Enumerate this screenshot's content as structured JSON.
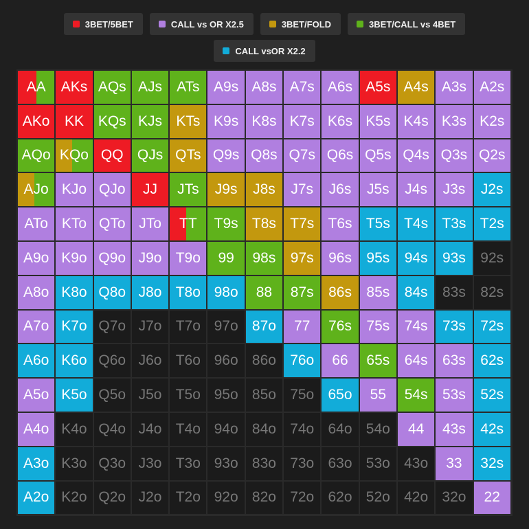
{
  "colors": {
    "red": "#ee1b24",
    "purple": "#b07fe0",
    "gold": "#c3980e",
    "green": "#5fb21b",
    "blue": "#12acd9",
    "empty": "#1b1b1b"
  },
  "legend": [
    {
      "key": "red",
      "label": "3BET/5BET"
    },
    {
      "key": "purple",
      "label": "CALL vs OR X2.5"
    },
    {
      "key": "gold",
      "label": "3BET/FOLD"
    },
    {
      "key": "green",
      "label": "3BET/CALL vs 4BET"
    },
    {
      "key": "blue",
      "label": "CALL vsOR X2.2"
    }
  ],
  "chart_data": {
    "type": "heatmap",
    "ranks": [
      "A",
      "K",
      "Q",
      "J",
      "T",
      "9",
      "8",
      "7",
      "6",
      "5",
      "4",
      "3",
      "2"
    ],
    "hands": [
      [
        "AA",
        "AKs",
        "AQs",
        "AJs",
        "ATs",
        "A9s",
        "A8s",
        "A7s",
        "A6s",
        "A5s",
        "A4s",
        "A3s",
        "A2s"
      ],
      [
        "AKo",
        "KK",
        "KQs",
        "KJs",
        "KTs",
        "K9s",
        "K8s",
        "K7s",
        "K6s",
        "K5s",
        "K4s",
        "K3s",
        "K2s"
      ],
      [
        "AQo",
        "KQo",
        "QQ",
        "QJs",
        "QTs",
        "Q9s",
        "Q8s",
        "Q7s",
        "Q6s",
        "Q5s",
        "Q4s",
        "Q3s",
        "Q2s"
      ],
      [
        "AJo",
        "KJo",
        "QJo",
        "JJ",
        "JTs",
        "J9s",
        "J8s",
        "J7s",
        "J6s",
        "J5s",
        "J4s",
        "J3s",
        "J2s"
      ],
      [
        "ATo",
        "KTo",
        "QTo",
        "JTo",
        "TT",
        "T9s",
        "T8s",
        "T7s",
        "T6s",
        "T5s",
        "T4s",
        "T3s",
        "T2s"
      ],
      [
        "A9o",
        "K9o",
        "Q9o",
        "J9o",
        "T9o",
        "99",
        "98s",
        "97s",
        "96s",
        "95s",
        "94s",
        "93s",
        "92s"
      ],
      [
        "A8o",
        "K8o",
        "Q8o",
        "J8o",
        "T8o",
        "98o",
        "88",
        "87s",
        "86s",
        "85s",
        "84s",
        "83s",
        "82s"
      ],
      [
        "A7o",
        "K7o",
        "Q7o",
        "J7o",
        "T7o",
        "97o",
        "87o",
        "77",
        "76s",
        "75s",
        "74s",
        "73s",
        "72s"
      ],
      [
        "A6o",
        "K6o",
        "Q6o",
        "J6o",
        "T6o",
        "96o",
        "86o",
        "76o",
        "66",
        "65s",
        "64s",
        "63s",
        "62s"
      ],
      [
        "A5o",
        "K5o",
        "Q5o",
        "J5o",
        "T5o",
        "95o",
        "85o",
        "75o",
        "65o",
        "55",
        "54s",
        "53s",
        "52s"
      ],
      [
        "A4o",
        "K4o",
        "Q4o",
        "J4o",
        "T4o",
        "94o",
        "84o",
        "74o",
        "64o",
        "54o",
        "44",
        "43s",
        "42s"
      ],
      [
        "A3o",
        "K3o",
        "Q3o",
        "J3o",
        "T3o",
        "93o",
        "83o",
        "73o",
        "63o",
        "53o",
        "43o",
        "33",
        "32s"
      ],
      [
        "A2o",
        "K2o",
        "Q2o",
        "J2o",
        "T2o",
        "92o",
        "82o",
        "72o",
        "62o",
        "52o",
        "42o",
        "32o",
        "22"
      ]
    ],
    "actions": [
      [
        [
          "red",
          0.5,
          "green",
          0.5
        ],
        "red",
        "green",
        "green",
        "green",
        "purple",
        "purple",
        "purple",
        "purple",
        "red",
        "gold",
        "purple",
        "purple"
      ],
      [
        "red",
        "red",
        "green",
        "green",
        "gold",
        "purple",
        "purple",
        "purple",
        "purple",
        "purple",
        "purple",
        "purple",
        "purple"
      ],
      [
        "green",
        [
          "gold",
          0.45,
          "green",
          0.55
        ],
        "red",
        "green",
        "gold",
        "purple",
        "purple",
        "purple",
        "purple",
        "purple",
        "purple",
        "purple",
        "purple"
      ],
      [
        [
          "gold",
          0.45,
          "green",
          0.55
        ],
        "purple",
        "purple",
        "red",
        "green",
        "gold",
        "gold",
        "purple",
        "purple",
        "purple",
        "purple",
        "purple",
        "blue"
      ],
      [
        "purple",
        "purple",
        "purple",
        "purple",
        [
          "red",
          0.45,
          "green",
          0.55
        ],
        "green",
        "gold",
        "gold",
        "purple",
        "blue",
        "blue",
        "blue",
        "blue"
      ],
      [
        "purple",
        "purple",
        "purple",
        "purple",
        "purple",
        "green",
        "green",
        "gold",
        "purple",
        "blue",
        "blue",
        "blue",
        "empty"
      ],
      [
        "purple",
        "blue",
        "blue",
        "blue",
        "blue",
        "blue",
        "green",
        "green",
        "gold",
        "purple",
        "blue",
        "empty",
        "empty"
      ],
      [
        "purple",
        "blue",
        "empty",
        "empty",
        "empty",
        "empty",
        "blue",
        "purple",
        "green",
        "purple",
        "purple",
        "blue",
        "blue"
      ],
      [
        "blue",
        "blue",
        "empty",
        "empty",
        "empty",
        "empty",
        "empty",
        "blue",
        "purple",
        "green",
        "purple",
        "purple",
        "blue"
      ],
      [
        "purple",
        "blue",
        "empty",
        "empty",
        "empty",
        "empty",
        "empty",
        "empty",
        "blue",
        "purple",
        "green",
        "purple",
        "blue"
      ],
      [
        "purple",
        "empty",
        "empty",
        "empty",
        "empty",
        "empty",
        "empty",
        "empty",
        "empty",
        "empty",
        "purple",
        "purple",
        "blue"
      ],
      [
        "blue",
        "empty",
        "empty",
        "empty",
        "empty",
        "empty",
        "empty",
        "empty",
        "empty",
        "empty",
        "empty",
        "purple",
        "blue"
      ],
      [
        "blue",
        "empty",
        "empty",
        "empty",
        "empty",
        "empty",
        "empty",
        "empty",
        "empty",
        "empty",
        "empty",
        "empty",
        "purple"
      ]
    ]
  }
}
